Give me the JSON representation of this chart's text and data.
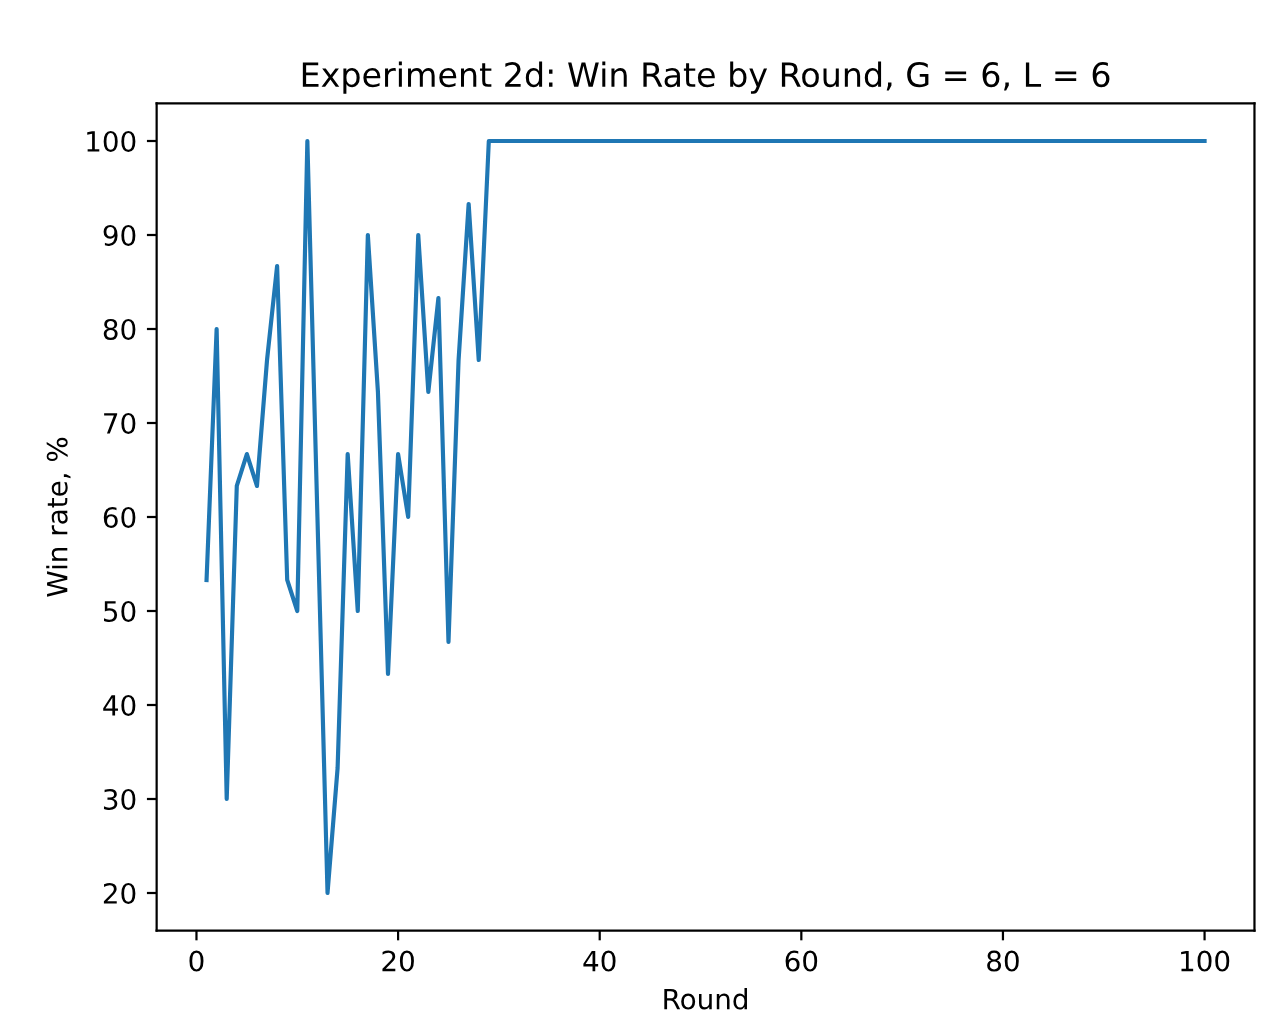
{
  "chart_data": {
    "type": "line",
    "title": "Experiment 2d: Win Rate by Round, G = 6, L = 6",
    "xlabel": "Round",
    "ylabel": "Win rate, %",
    "x": [
      1,
      2,
      3,
      4,
      5,
      6,
      7,
      8,
      9,
      10,
      11,
      12,
      13,
      14,
      15,
      16,
      17,
      18,
      19,
      20,
      21,
      22,
      23,
      24,
      25,
      26,
      27,
      28,
      29,
      30,
      31,
      32,
      33,
      34,
      35,
      36,
      37,
      38,
      39,
      40,
      41,
      42,
      43,
      44,
      45,
      46,
      47,
      48,
      49,
      50,
      51,
      52,
      53,
      54,
      55,
      56,
      57,
      58,
      59,
      60,
      61,
      62,
      63,
      64,
      65,
      66,
      67,
      68,
      69,
      70,
      71,
      72,
      73,
      74,
      75,
      76,
      77,
      78,
      79,
      80,
      81,
      82,
      83,
      84,
      85,
      86,
      87,
      88,
      89,
      90,
      91,
      92,
      93,
      94,
      95,
      96,
      97,
      98,
      99,
      100
    ],
    "series": [
      {
        "color": "#1f77b4",
        "values": [
          53.3,
          80,
          30,
          63.3,
          66.7,
          63.3,
          76.7,
          86.7,
          53.3,
          50,
          100,
          60,
          20,
          33.3,
          66.7,
          50,
          90,
          73.3,
          43.3,
          66.7,
          60,
          90,
          73.3,
          83.3,
          46.7,
          76.7,
          93.3,
          76.7,
          100,
          100,
          100,
          100,
          100,
          100,
          100,
          100,
          100,
          100,
          100,
          100,
          100,
          100,
          100,
          100,
          100,
          100,
          100,
          100,
          100,
          100,
          100,
          100,
          100,
          100,
          100,
          100,
          100,
          100,
          100,
          100,
          100,
          100,
          100,
          100,
          100,
          100,
          100,
          100,
          100,
          100,
          100,
          100,
          100,
          100,
          100,
          100,
          100,
          100,
          100,
          100,
          100,
          100,
          100,
          100,
          100,
          100,
          100,
          100,
          100,
          100,
          100,
          100,
          100,
          100,
          100,
          100,
          100,
          100,
          100,
          100
        ]
      }
    ],
    "xlim": [
      -3.95,
      104.95
    ],
    "xticks": [
      0,
      20,
      40,
      60,
      80,
      100
    ],
    "ylim": [
      16,
      104
    ],
    "yticks": [
      20,
      30,
      40,
      50,
      60,
      70,
      80,
      90,
      100
    ],
    "grid": false,
    "legend": false,
    "marker": "none",
    "line_style": "solid"
  }
}
